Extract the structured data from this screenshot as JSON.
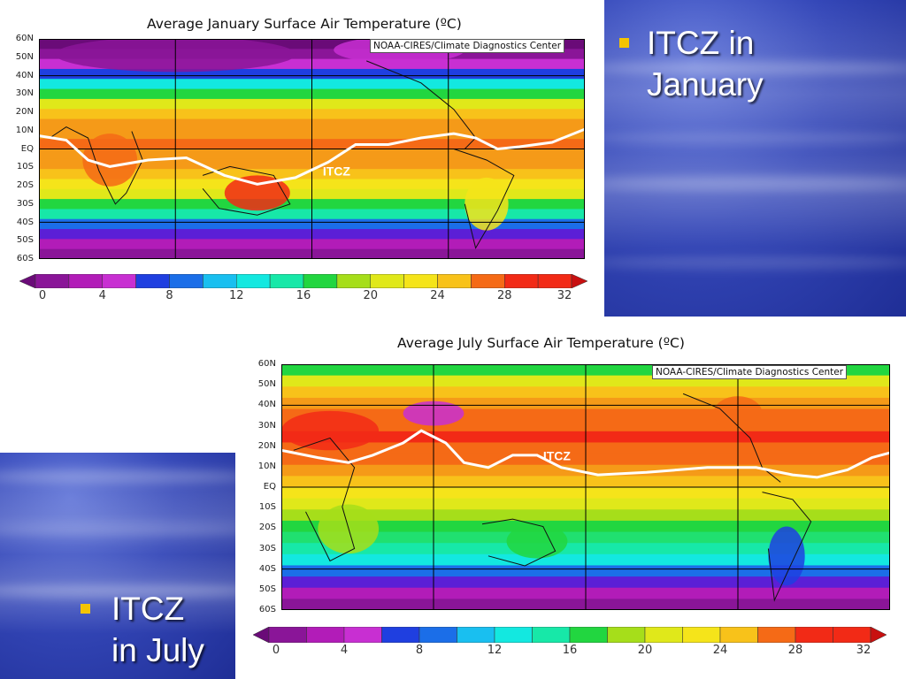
{
  "slide": {
    "january_bullet": [
      "ITCZ in",
      "January"
    ],
    "july_bullet": [
      "ITCZ",
      "in July"
    ]
  },
  "january_map": {
    "title": "Average January Surface Air Temperature (ºC)",
    "credit": "NOAA-CIRES/Climate Diagnostics Center",
    "itcz_label": "ITCZ",
    "lat_labels": [
      "60N",
      "50N",
      "40N",
      "30N",
      "20N",
      "10N",
      "EQ",
      "10S",
      "20S",
      "30S",
      "40S",
      "50S",
      "60S"
    ],
    "colorbar_labels": [
      "0",
      "4",
      "8",
      "12",
      "16",
      "20",
      "24",
      "28",
      "32"
    ]
  },
  "july_map": {
    "title": "Average July Surface Air Temperature (ºC)",
    "credit": "NOAA-CIRES/Climate Diagnostics Center",
    "itcz_label": "ITCZ",
    "lat_labels": [
      "60N",
      "50N",
      "40N",
      "30N",
      "20N",
      "10N",
      "EQ",
      "10S",
      "20S",
      "30S",
      "40S",
      "50S",
      "60S"
    ],
    "colorbar_labels": [
      "0",
      "4",
      "8",
      "12",
      "16",
      "20",
      "24",
      "28",
      "32"
    ]
  },
  "colors": {
    "scale": [
      "#6a0b78",
      "#8a1598",
      "#b21cb8",
      "#c82fd2",
      "#5b1fd6",
      "#1f3fe0",
      "#1b6ee8",
      "#19bff0",
      "#13e8e0",
      "#17e8a8",
      "#20e070",
      "#22d640",
      "#a6de1a",
      "#e0e81a",
      "#f5e41a",
      "#f8c21a",
      "#f59a18",
      "#f56a16",
      "#f22a16",
      "#c81010"
    ],
    "itcz_line": "#ffffff"
  }
}
